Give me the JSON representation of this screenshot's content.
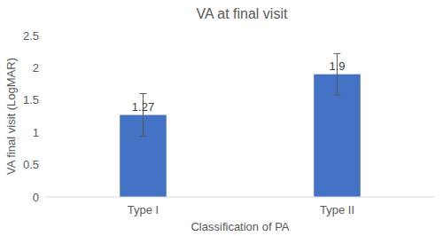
{
  "chart_data": {
    "type": "bar",
    "title": "VA at final visit",
    "x_label": "Classification of PA",
    "y_label": "VA final visit (LogMAR)",
    "categories": [
      "Type I",
      "Type II"
    ],
    "values": [
      1.27,
      1.9
    ],
    "errors": [
      0.33,
      0.32
    ],
    "color": "#4472c4",
    "ylim": [
      0,
      2.5
    ],
    "yticks": [
      0,
      0.5,
      1,
      1.5,
      2,
      2.5
    ],
    "grid": false,
    "data_labels": true
  }
}
